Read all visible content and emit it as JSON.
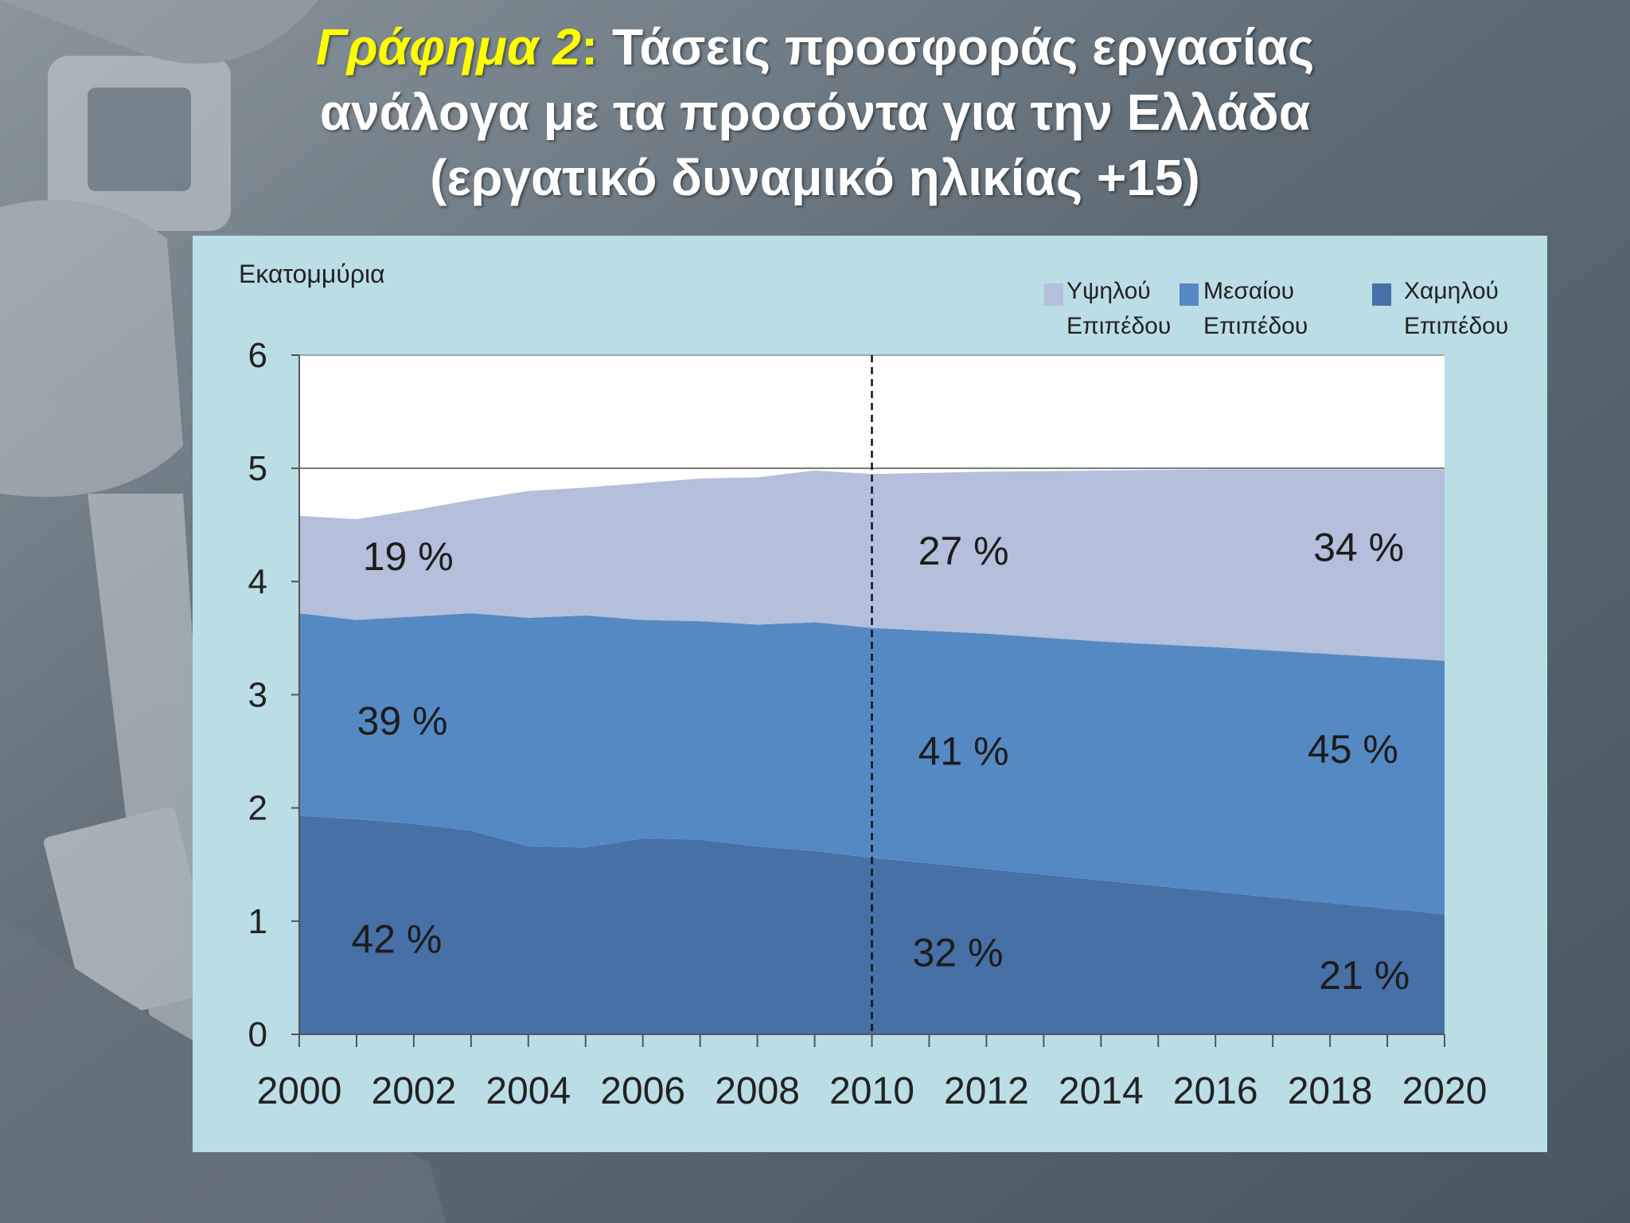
{
  "title": {
    "prefix": "Γράφημα 2",
    "colon": ":",
    "line1_rest": " Τάσεις προσφοράς εργασίας",
    "line2": "ανάλογα με τα προσόντα για την Ελλάδα",
    "line3": "(εργατικό δυναμικό ηλικίας +15)"
  },
  "colors": {
    "title_highlight": "#ffff00",
    "panel_bg": "#bbdde6",
    "high": "#b3bfdb",
    "medium": "#5589c4",
    "low": "#4670a6"
  },
  "chart_data": {
    "type": "area",
    "stacked": true,
    "ylabel": "Εκατομμύρια",
    "ylim": [
      0,
      6
    ],
    "yticks": [
      "0",
      "1",
      "2",
      "3",
      "4",
      "5",
      "6"
    ],
    "xlim": [
      2000,
      2020
    ],
    "xticks": [
      "2000",
      "2002",
      "2004",
      "2006",
      "2008",
      "2010",
      "2012",
      "2014",
      "2016",
      "2018",
      "2020"
    ],
    "projection_start": 2010,
    "legend_position": "top-right",
    "x": [
      2000,
      2001,
      2002,
      2003,
      2004,
      2005,
      2006,
      2007,
      2008,
      2009,
      2010,
      2012,
      2014,
      2016,
      2018,
      2020
    ],
    "series": [
      {
        "name": "Χαμηλού Επιπέδου",
        "color_key": "low",
        "values": [
          1.93,
          1.9,
          1.86,
          1.8,
          1.66,
          1.65,
          1.73,
          1.72,
          1.66,
          1.62,
          1.56,
          1.46,
          1.36,
          1.26,
          1.16,
          1.06
        ]
      },
      {
        "name": "Μεσαίου Επιπέδου",
        "color_key": "medium",
        "values": [
          1.79,
          1.76,
          1.83,
          1.92,
          2.02,
          2.05,
          1.93,
          1.93,
          1.96,
          2.02,
          2.03,
          2.08,
          2.11,
          2.16,
          2.2,
          2.24
        ]
      },
      {
        "name": "Υψηλού Επιπέδου",
        "color_key": "high",
        "values": [
          0.86,
          0.89,
          0.94,
          1.0,
          1.12,
          1.13,
          1.21,
          1.26,
          1.3,
          1.34,
          1.36,
          1.43,
          1.51,
          1.57,
          1.63,
          1.69
        ]
      }
    ],
    "annotations": [
      {
        "text": "19 %",
        "x": 2001.9,
        "y": 4.1
      },
      {
        "text": "39 %",
        "x": 2001.8,
        "y": 2.65
      },
      {
        "text": "42 %",
        "x": 2001.7,
        "y": 0.72
      },
      {
        "text": "27 %",
        "x": 2011.6,
        "y": 4.15
      },
      {
        "text": "41 %",
        "x": 2011.6,
        "y": 2.38
      },
      {
        "text": "32 %",
        "x": 2011.5,
        "y": 0.6
      },
      {
        "text": "34 %",
        "x": 2018.5,
        "y": 4.18
      },
      {
        "text": "45 %",
        "x": 2018.4,
        "y": 2.4
      },
      {
        "text": "21 %",
        "x": 2018.6,
        "y": 0.4
      }
    ]
  },
  "legend": [
    {
      "line1": "Υψηλού",
      "line2": "Επιπέδου",
      "color_key": "high"
    },
    {
      "line1": "Μεσαίου",
      "line2": "Επιπέδου",
      "color_key": "medium"
    },
    {
      "line1": "Χαμηλού",
      "line2": "Επιπέδου",
      "color_key": "low"
    }
  ]
}
